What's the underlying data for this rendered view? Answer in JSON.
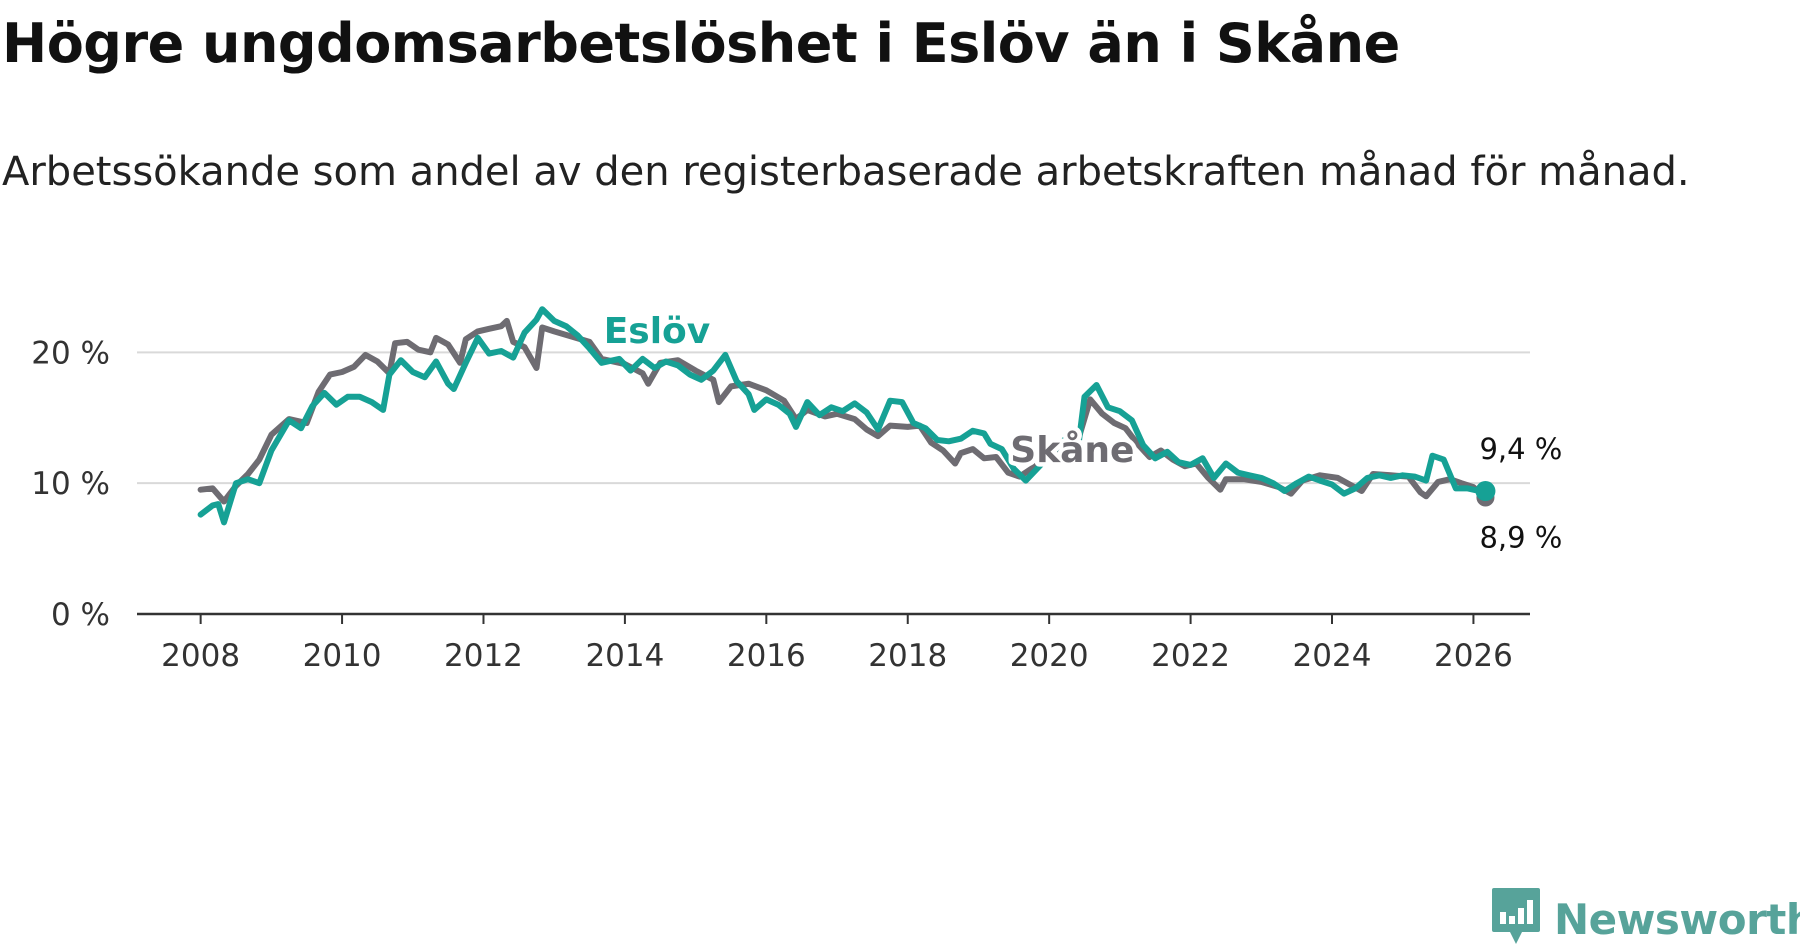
{
  "title": "Högre ungdomsarbetslöshet i Eslöv än i Skåne",
  "subtitle": "Arbetssökande som andel av den registerbaserade arbetskraften månad för månad.",
  "brand": {
    "name": "Newsworthy",
    "icon": "bar-chart-speech-icon",
    "color": "#57a39a"
  },
  "chart_data": {
    "type": "line",
    "x_label": "",
    "y_label": "",
    "x_range": [
      2007.1,
      2026.8
    ],
    "x_ticks": [
      2008,
      2010,
      2012,
      2014,
      2016,
      2018,
      2020,
      2022,
      2024,
      2026
    ],
    "x_tick_labels": [
      "2008",
      "2010",
      "2012",
      "2014",
      "2016",
      "2018",
      "2020",
      "2022",
      "2024",
      "2026"
    ],
    "y_range": [
      0,
      24
    ],
    "y_ticks": [
      0,
      10,
      20
    ],
    "y_tick_labels": [
      "0 %",
      "10 %",
      "20 %"
    ],
    "grid": true,
    "series": [
      {
        "name": "Skåne",
        "color": "#6e6c72",
        "label": "Skåne",
        "end_label": "8,9 %",
        "points": [
          [
            2008.0,
            9.5
          ],
          [
            2008.17,
            9.6
          ],
          [
            2008.33,
            8.6
          ],
          [
            2008.5,
            9.8
          ],
          [
            2008.67,
            10.7
          ],
          [
            2008.83,
            11.8
          ],
          [
            2009.0,
            13.7
          ],
          [
            2009.25,
            14.9
          ],
          [
            2009.5,
            14.6
          ],
          [
            2009.67,
            17.0
          ],
          [
            2009.83,
            18.3
          ],
          [
            2010.0,
            18.5
          ],
          [
            2010.17,
            18.9
          ],
          [
            2010.33,
            19.8
          ],
          [
            2010.5,
            19.3
          ],
          [
            2010.67,
            18.4
          ],
          [
            2010.75,
            20.7
          ],
          [
            2010.92,
            20.8
          ],
          [
            2011.08,
            20.2
          ],
          [
            2011.25,
            20.0
          ],
          [
            2011.33,
            21.1
          ],
          [
            2011.5,
            20.6
          ],
          [
            2011.67,
            19.2
          ],
          [
            2011.75,
            21.0
          ],
          [
            2011.92,
            21.6
          ],
          [
            2012.08,
            21.8
          ],
          [
            2012.25,
            22.0
          ],
          [
            2012.33,
            22.4
          ],
          [
            2012.42,
            20.8
          ],
          [
            2012.58,
            20.4
          ],
          [
            2012.75,
            18.8
          ],
          [
            2012.83,
            21.9
          ],
          [
            2013.0,
            21.6
          ],
          [
            2013.25,
            21.2
          ],
          [
            2013.5,
            20.8
          ],
          [
            2013.67,
            19.5
          ],
          [
            2014.0,
            19.1
          ],
          [
            2014.25,
            18.4
          ],
          [
            2014.33,
            17.6
          ],
          [
            2014.5,
            19.2
          ],
          [
            2014.75,
            19.4
          ],
          [
            2015.0,
            18.6
          ],
          [
            2015.25,
            17.9
          ],
          [
            2015.33,
            16.2
          ],
          [
            2015.5,
            17.4
          ],
          [
            2015.75,
            17.6
          ],
          [
            2016.0,
            17.1
          ],
          [
            2016.25,
            16.3
          ],
          [
            2016.42,
            14.9
          ],
          [
            2016.58,
            15.6
          ],
          [
            2016.83,
            15.1
          ],
          [
            2017.0,
            15.3
          ],
          [
            2017.25,
            14.9
          ],
          [
            2017.42,
            14.1
          ],
          [
            2017.58,
            13.6
          ],
          [
            2017.75,
            14.4
          ],
          [
            2018.0,
            14.3
          ],
          [
            2018.17,
            14.4
          ],
          [
            2018.33,
            13.1
          ],
          [
            2018.5,
            12.5
          ],
          [
            2018.67,
            11.5
          ],
          [
            2018.75,
            12.3
          ],
          [
            2018.92,
            12.6
          ],
          [
            2019.08,
            11.9
          ],
          [
            2019.25,
            12.0
          ],
          [
            2019.42,
            10.8
          ],
          [
            2019.58,
            10.5
          ],
          [
            2020.42,
            13.5
          ],
          [
            2020.58,
            16.4
          ],
          [
            2020.75,
            15.3
          ],
          [
            2020.92,
            14.6
          ],
          [
            2021.08,
            14.2
          ],
          [
            2021.25,
            13.0
          ],
          [
            2021.42,
            12.0
          ],
          [
            2021.58,
            12.5
          ],
          [
            2021.75,
            11.8
          ],
          [
            2021.92,
            11.3
          ],
          [
            2022.08,
            11.5
          ],
          [
            2022.25,
            10.4
          ],
          [
            2022.42,
            9.5
          ],
          [
            2022.5,
            10.3
          ],
          [
            2022.75,
            10.3
          ],
          [
            2023.0,
            10.1
          ],
          [
            2023.25,
            9.7
          ],
          [
            2023.42,
            9.2
          ],
          [
            2023.58,
            10.2
          ],
          [
            2023.83,
            10.6
          ],
          [
            2024.08,
            10.4
          ],
          [
            2024.25,
            9.9
          ],
          [
            2024.42,
            9.4
          ],
          [
            2024.58,
            10.7
          ],
          [
            2024.83,
            10.6
          ],
          [
            2025.08,
            10.5
          ],
          [
            2025.25,
            9.3
          ],
          [
            2025.33,
            9.0
          ],
          [
            2025.5,
            10.1
          ],
          [
            2025.67,
            10.3
          ],
          [
            2025.83,
            10.0
          ],
          [
            2026.0,
            9.7
          ],
          [
            2026.17,
            8.9
          ]
        ]
      },
      {
        "name": "Eslöv",
        "color": "#16a195",
        "label": "Eslöv",
        "end_label": "9,4 %",
        "points": [
          [
            2008.0,
            7.6
          ],
          [
            2008.17,
            8.3
          ],
          [
            2008.25,
            8.4
          ],
          [
            2008.33,
            7.0
          ],
          [
            2008.5,
            10.0
          ],
          [
            2008.67,
            10.3
          ],
          [
            2008.83,
            10.0
          ],
          [
            2009.0,
            12.5
          ],
          [
            2009.25,
            14.8
          ],
          [
            2009.42,
            14.2
          ],
          [
            2009.58,
            15.9
          ],
          [
            2009.75,
            16.9
          ],
          [
            2009.92,
            16.0
          ],
          [
            2010.08,
            16.6
          ],
          [
            2010.25,
            16.6
          ],
          [
            2010.42,
            16.2
          ],
          [
            2010.58,
            15.6
          ],
          [
            2010.67,
            18.3
          ],
          [
            2010.83,
            19.4
          ],
          [
            2011.0,
            18.5
          ],
          [
            2011.17,
            18.1
          ],
          [
            2011.33,
            19.3
          ],
          [
            2011.5,
            17.6
          ],
          [
            2011.58,
            17.2
          ],
          [
            2011.75,
            19.2
          ],
          [
            2011.92,
            21.1
          ],
          [
            2012.08,
            19.9
          ],
          [
            2012.25,
            20.1
          ],
          [
            2012.42,
            19.6
          ],
          [
            2012.58,
            21.5
          ],
          [
            2012.75,
            22.5
          ],
          [
            2012.83,
            23.3
          ],
          [
            2013.0,
            22.4
          ],
          [
            2013.17,
            22.0
          ],
          [
            2013.33,
            21.3
          ],
          [
            2013.5,
            20.3
          ],
          [
            2013.67,
            19.2
          ],
          [
            2013.92,
            19.5
          ],
          [
            2014.08,
            18.6
          ],
          [
            2014.25,
            19.5
          ],
          [
            2014.42,
            18.8
          ],
          [
            2014.58,
            19.3
          ],
          [
            2014.75,
            19.0
          ],
          [
            2014.92,
            18.3
          ],
          [
            2015.08,
            17.9
          ],
          [
            2015.25,
            18.6
          ],
          [
            2015.42,
            19.8
          ],
          [
            2015.58,
            17.8
          ],
          [
            2015.75,
            16.8
          ],
          [
            2015.83,
            15.6
          ],
          [
            2016.0,
            16.4
          ],
          [
            2016.17,
            16.0
          ],
          [
            2016.33,
            15.3
          ],
          [
            2016.42,
            14.3
          ],
          [
            2016.58,
            16.2
          ],
          [
            2016.75,
            15.2
          ],
          [
            2016.92,
            15.8
          ],
          [
            2017.08,
            15.5
          ],
          [
            2017.25,
            16.1
          ],
          [
            2017.42,
            15.4
          ],
          [
            2017.58,
            14.1
          ],
          [
            2017.75,
            16.3
          ],
          [
            2017.92,
            16.2
          ],
          [
            2018.08,
            14.6
          ],
          [
            2018.25,
            14.2
          ],
          [
            2018.42,
            13.3
          ],
          [
            2018.58,
            13.2
          ],
          [
            2018.75,
            13.4
          ],
          [
            2018.92,
            14.0
          ],
          [
            2019.08,
            13.8
          ],
          [
            2019.17,
            13.0
          ],
          [
            2019.33,
            12.6
          ],
          [
            2019.5,
            11.1
          ],
          [
            2019.67,
            10.2
          ],
          [
            2020.25,
            13.5
          ],
          [
            2020.42,
            13.2
          ],
          [
            2020.5,
            16.6
          ],
          [
            2020.67,
            17.5
          ],
          [
            2020.83,
            15.8
          ],
          [
            2021.0,
            15.5
          ],
          [
            2021.17,
            14.8
          ],
          [
            2021.33,
            12.9
          ],
          [
            2021.5,
            11.9
          ],
          [
            2021.67,
            12.4
          ],
          [
            2021.83,
            11.6
          ],
          [
            2022.0,
            11.4
          ],
          [
            2022.17,
            11.9
          ],
          [
            2022.33,
            10.4
          ],
          [
            2022.5,
            11.5
          ],
          [
            2022.67,
            10.8
          ],
          [
            2022.83,
            10.6
          ],
          [
            2023.0,
            10.4
          ],
          [
            2023.17,
            10.0
          ],
          [
            2023.33,
            9.4
          ],
          [
            2023.5,
            10.0
          ],
          [
            2023.67,
            10.5
          ],
          [
            2023.83,
            10.2
          ],
          [
            2024.0,
            9.9
          ],
          [
            2024.17,
            9.2
          ],
          [
            2024.33,
            9.6
          ],
          [
            2024.5,
            10.4
          ],
          [
            2024.67,
            10.6
          ],
          [
            2024.83,
            10.4
          ],
          [
            2025.0,
            10.6
          ],
          [
            2025.17,
            10.5
          ],
          [
            2025.33,
            10.2
          ],
          [
            2025.42,
            12.1
          ],
          [
            2025.58,
            11.8
          ],
          [
            2025.75,
            9.6
          ],
          [
            2025.92,
            9.6
          ],
          [
            2026.08,
            9.4
          ],
          [
            2026.17,
            9.4
          ]
        ]
      }
    ]
  }
}
